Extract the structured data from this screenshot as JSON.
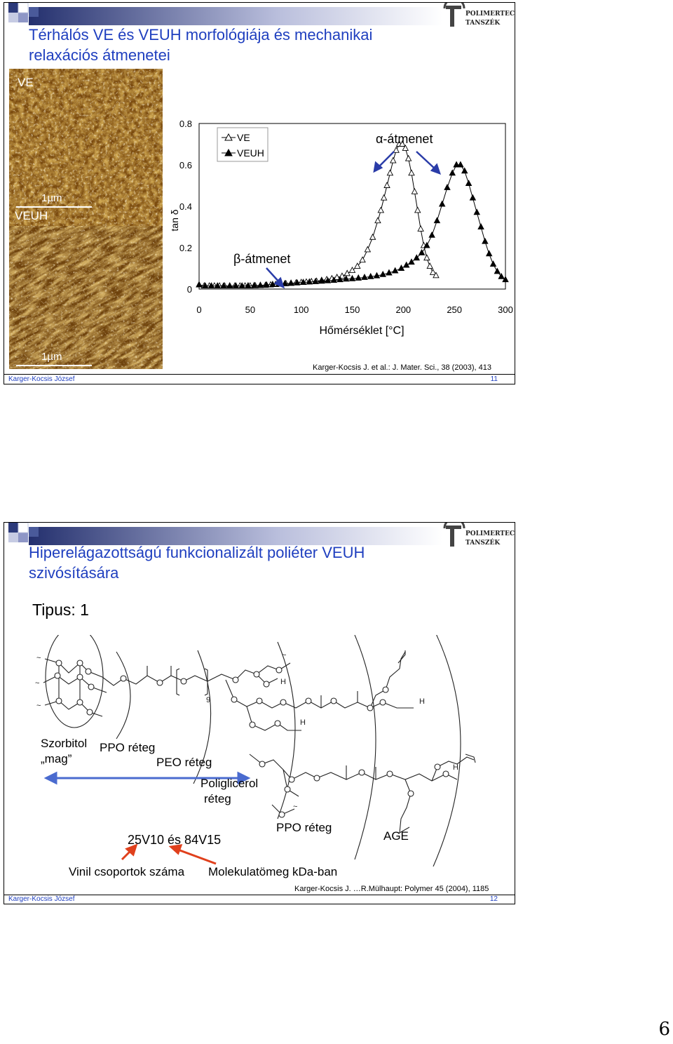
{
  "slide1": {
    "title_line1": "Térhálós VE és VEUH morfológiája és mechanikai",
    "title_line2": "relaxációs átmenetei",
    "afm_label_top": "VE",
    "afm_label_bottom": "VEUH",
    "scale_top": "1µm",
    "scale_bottom": "1µm",
    "alpha_label": "α-átmenet",
    "beta_label": "β-átmenet",
    "reference": "Karger-Kocsis J. et al.: J. Mater. Sci., 38 (2003), 413",
    "footer_author": "Karger-Kocsis József",
    "footer_number": "11",
    "logo_line1": "POLIMERTECHNIKA",
    "logo_line2": "TANSZÉK"
  },
  "chart_data": {
    "type": "scatter",
    "title": "",
    "xlabel": "Hőmérséklet [°C]",
    "ylabel": "tan δ",
    "xlim": [
      0,
      300
    ],
    "ylim": [
      0,
      0.8
    ],
    "xticks": [
      "0",
      "50",
      "100",
      "150",
      "200",
      "250",
      "300"
    ],
    "yticks": [
      "0",
      "0.2",
      "0.4",
      "0.6",
      "0.8"
    ],
    "legend_position": "top-left",
    "series": [
      {
        "name": "VE",
        "marker": "open-triangle",
        "x": [
          0,
          5,
          10,
          15,
          20,
          25,
          30,
          35,
          40,
          45,
          50,
          55,
          60,
          65,
          70,
          75,
          80,
          85,
          90,
          95,
          100,
          105,
          110,
          115,
          120,
          125,
          130,
          135,
          140,
          145,
          150,
          155,
          160,
          165,
          170,
          175,
          178,
          181,
          184,
          187,
          190,
          193,
          196,
          199,
          202,
          205,
          208,
          211,
          214,
          217,
          220,
          223,
          226,
          229,
          232
        ],
        "y": [
          0.02,
          0.015,
          0.015,
          0.015,
          0.015,
          0.015,
          0.015,
          0.015,
          0.015,
          0.015,
          0.015,
          0.016,
          0.017,
          0.018,
          0.02,
          0.022,
          0.024,
          0.026,
          0.028,
          0.03,
          0.032,
          0.034,
          0.036,
          0.038,
          0.042,
          0.046,
          0.05,
          0.056,
          0.062,
          0.075,
          0.09,
          0.11,
          0.14,
          0.19,
          0.25,
          0.33,
          0.38,
          0.44,
          0.5,
          0.56,
          0.62,
          0.67,
          0.7,
          0.7,
          0.68,
          0.63,
          0.56,
          0.47,
          0.38,
          0.29,
          0.21,
          0.15,
          0.11,
          0.08,
          0.065
        ]
      },
      {
        "name": "VEUH",
        "marker": "filled-triangle",
        "x": [
          0,
          6,
          12,
          18,
          24,
          30,
          36,
          42,
          48,
          54,
          60,
          66,
          72,
          78,
          84,
          90,
          96,
          102,
          108,
          114,
          120,
          126,
          132,
          138,
          144,
          150,
          156,
          162,
          168,
          174,
          180,
          186,
          192,
          198,
          203,
          208,
          213,
          218,
          223,
          228,
          233,
          238,
          243,
          248,
          252,
          256,
          260,
          264,
          268,
          272,
          276,
          280,
          284,
          288,
          292,
          296,
          300
        ],
        "y": [
          0.02,
          0.015,
          0.015,
          0.015,
          0.015,
          0.015,
          0.015,
          0.015,
          0.016,
          0.017,
          0.018,
          0.02,
          0.022,
          0.024,
          0.026,
          0.028,
          0.03,
          0.032,
          0.034,
          0.036,
          0.038,
          0.04,
          0.042,
          0.045,
          0.048,
          0.05,
          0.053,
          0.056,
          0.06,
          0.064,
          0.07,
          0.078,
          0.088,
          0.1,
          0.115,
          0.13,
          0.15,
          0.175,
          0.21,
          0.26,
          0.33,
          0.41,
          0.49,
          0.56,
          0.6,
          0.6,
          0.57,
          0.51,
          0.44,
          0.37,
          0.3,
          0.23,
          0.17,
          0.12,
          0.085,
          0.06,
          0.045
        ]
      }
    ]
  },
  "slide2": {
    "title_line1": "Hiperelágazottságú funkcionalizált poliéter VEUH",
    "title_line2": "szivósítására",
    "tipus_label": "Tipus: 1",
    "label_szorbitol": "Szorbitol",
    "label_mag": "„mag”",
    "label_ppo1": "PPO réteg",
    "label_peo": "PEO réteg",
    "label_poliglicerol": "Poliglicerol",
    "label_reteg": "réteg",
    "label_ppo2": "PPO réteg",
    "label_age": "AGE",
    "label_codes": "25V10 és 84V15",
    "label_vinil": "Vinil csoportok száma",
    "label_mw": "Molekulatömeg kDa-ban",
    "label_h": "H",
    "label_nine": "9",
    "label_tilde": "~",
    "reference": "Karger-Kocsis J. …R.Mülhaupt: Polymer 45 (2004), 1185",
    "footer_author": "Karger-Kocsis József",
    "footer_number": "12",
    "logo_line1": "POLIMERTECHNIKA",
    "logo_line2": "TANSZÉK"
  },
  "page_number": "6",
  "colors": {
    "title_blue": "#1f3fbf",
    "arrow_blue": "#4a6bcf",
    "arrow_red": "#e0401c",
    "afm_brown": "#9a6418"
  }
}
